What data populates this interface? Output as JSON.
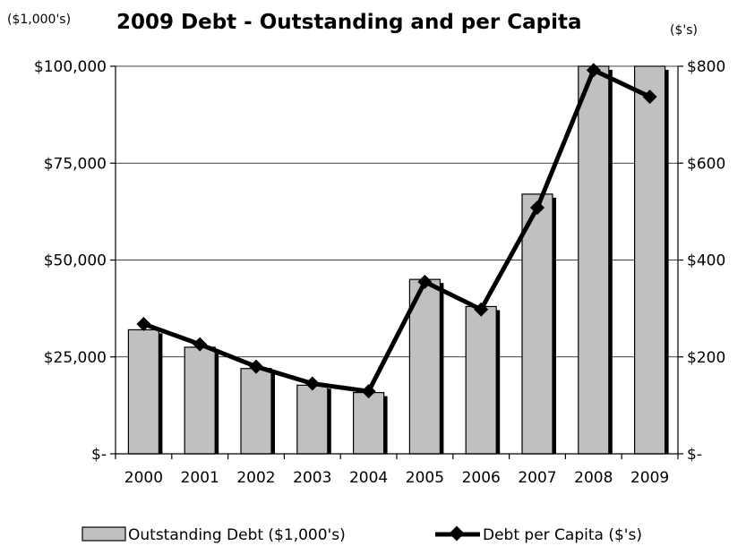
{
  "chart_data": {
    "type": "bar",
    "title": "2009 Debt - Outstanding and per Capita",
    "left_unit": "($1,000's)",
    "right_unit": "($'s)",
    "categories": [
      "2000",
      "2001",
      "2002",
      "2003",
      "2004",
      "2005",
      "2006",
      "2007",
      "2008",
      "2009"
    ],
    "left_ylim": [
      0,
      100000
    ],
    "right_ylim": [
      0,
      800
    ],
    "left_ticks": [
      "$-",
      "$25,000",
      "$50,000",
      "$75,000",
      "$100,000"
    ],
    "right_ticks": [
      "$-",
      "$200",
      "$400",
      "$600",
      "$800"
    ],
    "series": [
      {
        "name": "Outstanding Debt ($1,000's)",
        "kind": "bar",
        "axis": "left",
        "color": "#c0c0c0",
        "values": [
          32000,
          27500,
          22000,
          17700,
          15800,
          45000,
          38000,
          67000,
          100000,
          100000
        ]
      },
      {
        "name": "Debt per Capita ($'s)",
        "kind": "line",
        "axis": "right",
        "color": "#000000",
        "values": [
          268,
          226,
          180,
          145,
          129,
          355,
          298,
          508,
          792,
          737
        ]
      }
    ],
    "grid": true,
    "legend_position": "bottom"
  }
}
